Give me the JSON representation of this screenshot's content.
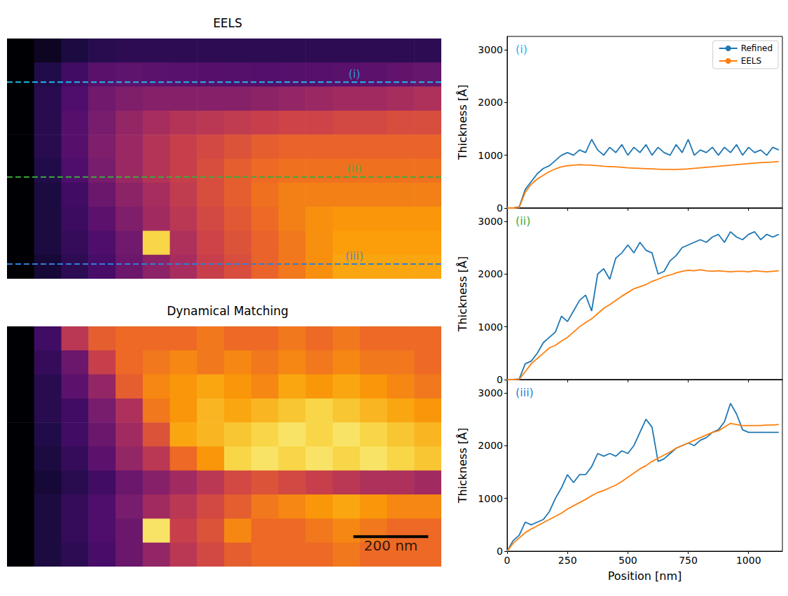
{
  "chart_data": [
    {
      "type": "heatmap",
      "title": "EELS",
      "tick_labels": false,
      "xlim": [
        0,
        1160
      ],
      "ylim": [
        0,
        640
      ],
      "color_range": [
        0,
        3000
      ],
      "x": [
        36.25,
        108.75,
        181.25,
        253.75,
        326.25,
        398.75,
        471.25,
        543.75,
        616.25,
        688.75,
        761.25,
        833.75,
        906.25,
        978.75,
        1051.25,
        1123.75
      ],
      "y": [
        32,
        96,
        160,
        224,
        288,
        352,
        416,
        480,
        544,
        608
      ],
      "values": [
        [
          0,
          150,
          300,
          400,
          450,
          450,
          450,
          450,
          450,
          450,
          450,
          450,
          450,
          450,
          450,
          450
        ],
        [
          0,
          350,
          600,
          780,
          810,
          790,
          770,
          750,
          740,
          730,
          740,
          760,
          780,
          800,
          840,
          870
        ],
        [
          0,
          400,
          700,
          950,
          1050,
          1100,
          1100,
          1100,
          1100,
          1150,
          1200,
          1250,
          1300,
          1300,
          1350,
          1400
        ],
        [
          0,
          400,
          750,
          1000,
          1200,
          1350,
          1450,
          1500,
          1550,
          1600,
          1650,
          1650,
          1700,
          1700,
          1750,
          1750
        ],
        [
          0,
          400,
          750,
          1050,
          1250,
          1450,
          1600,
          1700,
          1800,
          1900,
          1950,
          1950,
          1950,
          1950,
          1950,
          1950
        ],
        [
          0,
          350,
          700,
          1000,
          1250,
          1450,
          1600,
          1750,
          1900,
          2000,
          2050,
          2050,
          2050,
          2050,
          2050,
          2050
        ],
        [
          0,
          300,
          600,
          900,
          1150,
          1350,
          1550,
          1750,
          1900,
          2050,
          2150,
          2150,
          2150,
          2150,
          2150,
          2150
        ],
        [
          0,
          300,
          550,
          800,
          1050,
          1300,
          1500,
          1700,
          1850,
          2000,
          2150,
          2250,
          2300,
          2300,
          2300,
          2300
        ],
        [
          0,
          300,
          500,
          700,
          950,
          2700,
          1400,
          1650,
          1800,
          1950,
          2100,
          2250,
          2350,
          2350,
          2350,
          2350
        ],
        [
          0,
          250,
          450,
          650,
          900,
          1150,
          1350,
          1600,
          1750,
          1950,
          2100,
          2250,
          2400,
          2400,
          2400,
          2400
        ]
      ],
      "lines": [
        {
          "label": "(i)",
          "y": 116,
          "color": "#22b8ea",
          "line_style": "dashed"
        },
        {
          "label": "(ii)",
          "y": 369,
          "color": "#3bab3b",
          "line_style": "dashed"
        },
        {
          "label": "(iii)",
          "y": 601,
          "color": "#2f7fd8",
          "line_style": "dashed"
        }
      ]
    },
    {
      "type": "heatmap",
      "title": "Dynamical Matching",
      "tick_labels": false,
      "xlim": [
        0,
        1160
      ],
      "ylim": [
        0,
        640
      ],
      "color_range": [
        0,
        3000
      ],
      "x": [
        36.25,
        108.75,
        181.25,
        253.75,
        326.25,
        398.75,
        471.25,
        543.75,
        616.25,
        688.75,
        761.25,
        833.75,
        906.25,
        978.75,
        1051.25,
        1123.75
      ],
      "y": [
        32,
        96,
        160,
        224,
        288,
        352,
        416,
        480,
        544,
        608
      ],
      "values": [
        [
          0,
          600,
          1500,
          1900,
          2000,
          2000,
          2000,
          2100,
          2000,
          2000,
          2100,
          2000,
          2100,
          2000,
          2000,
          2000
        ],
        [
          0,
          500,
          900,
          1600,
          2000,
          2100,
          2200,
          2100,
          2200,
          2100,
          2200,
          2100,
          2200,
          2100,
          2100,
          2000
        ],
        [
          0,
          400,
          800,
          1200,
          1900,
          2200,
          2300,
          2400,
          2300,
          2200,
          2400,
          2300,
          2400,
          2300,
          2200,
          2100
        ],
        [
          0,
          400,
          600,
          1000,
          1400,
          2100,
          2300,
          2500,
          2400,
          2500,
          2600,
          2700,
          2600,
          2500,
          2400,
          2300
        ],
        [
          0,
          350,
          600,
          900,
          1300,
          1800,
          2400,
          2500,
          2600,
          2700,
          2800,
          2700,
          2800,
          2700,
          2600,
          2500
        ],
        [
          0,
          300,
          500,
          800,
          1200,
          1500,
          2000,
          2300,
          2700,
          2800,
          2700,
          2800,
          2700,
          2800,
          2700,
          2600
        ],
        [
          0,
          250,
          400,
          600,
          900,
          1100,
          1300,
          1500,
          1700,
          1800,
          1700,
          1600,
          1500,
          1400,
          1400,
          1300
        ],
        [
          0,
          300,
          500,
          700,
          1000,
          1300,
          1500,
          1700,
          1900,
          2100,
          2200,
          2300,
          2400,
          2300,
          2200,
          2200
        ],
        [
          0,
          300,
          500,
          700,
          900,
          2800,
          1600,
          1800,
          2200,
          2000,
          2000,
          2100,
          2200,
          2100,
          2000,
          2000
        ],
        [
          0,
          300,
          450,
          650,
          900,
          1200,
          1500,
          1700,
          1900,
          2000,
          2000,
          2000,
          2100,
          2000,
          2000,
          2000
        ]
      ],
      "scale_bar": {
        "label": "200 nm",
        "length": 200
      }
    },
    {
      "type": "line",
      "title": "(i)",
      "tick_labels": "y",
      "legend": "upper right",
      "xlim": [
        0,
        1140
      ],
      "xticks": [
        0,
        250,
        500,
        750,
        1000
      ],
      "ylim": [
        0,
        3250
      ],
      "yticks": [
        0,
        1000,
        2000,
        3000
      ],
      "y_label": "Thickness [Å]",
      "x": [
        0,
        25,
        50,
        75,
        100,
        125,
        150,
        175,
        200,
        225,
        250,
        275,
        300,
        325,
        350,
        375,
        400,
        425,
        450,
        475,
        500,
        525,
        550,
        575,
        600,
        625,
        650,
        675,
        700,
        725,
        750,
        775,
        800,
        825,
        850,
        875,
        900,
        925,
        950,
        975,
        1000,
        1025,
        1050,
        1075,
        1100,
        1125
      ],
      "series": [
        {
          "name": "Refined",
          "color": "#1f77b4",
          "values": [
            0,
            0,
            20,
            350,
            500,
            650,
            750,
            800,
            900,
            1000,
            1050,
            1000,
            1100,
            1050,
            1300,
            1100,
            1000,
            1150,
            1050,
            1200,
            1000,
            1150,
            1050,
            1200,
            1000,
            1150,
            1050,
            1000,
            1200,
            1050,
            1300,
            1000,
            1100,
            1050,
            1150,
            1000,
            1150,
            1050,
            1200,
            1000,
            1150,
            1050,
            1100,
            1000,
            1150,
            1100
          ]
        },
        {
          "name": "EELS",
          "color": "#ff7f0e",
          "values": [
            0,
            0,
            10,
            300,
            450,
            550,
            620,
            690,
            740,
            780,
            800,
            810,
            820,
            815,
            810,
            800,
            790,
            785,
            780,
            770,
            760,
            755,
            750,
            745,
            740,
            735,
            730,
            730,
            730,
            735,
            740,
            750,
            760,
            770,
            780,
            790,
            800,
            810,
            820,
            830,
            840,
            850,
            860,
            865,
            870,
            880
          ]
        }
      ]
    },
    {
      "type": "line",
      "title": "(ii)",
      "tick_labels": "y",
      "xlim": [
        0,
        1140
      ],
      "xticks": [
        0,
        250,
        500,
        750,
        1000
      ],
      "ylim": [
        0,
        3250
      ],
      "yticks": [
        0,
        1000,
        2000,
        3000
      ],
      "y_label": "Thickness [Å]",
      "x": [
        0,
        25,
        50,
        75,
        100,
        125,
        150,
        175,
        200,
        225,
        250,
        275,
        300,
        325,
        350,
        375,
        400,
        425,
        450,
        475,
        500,
        525,
        550,
        575,
        600,
        625,
        650,
        675,
        700,
        725,
        750,
        775,
        800,
        825,
        850,
        875,
        900,
        925,
        950,
        975,
        1000,
        1025,
        1050,
        1075,
        1100,
        1125
      ],
      "series": [
        {
          "name": "Refined",
          "color": "#1f77b4",
          "values": [
            0,
            0,
            10,
            300,
            350,
            500,
            700,
            800,
            900,
            1200,
            1100,
            1300,
            1500,
            1600,
            1300,
            2000,
            2100,
            1900,
            2300,
            2400,
            2550,
            2400,
            2600,
            2450,
            2400,
            2000,
            2050,
            2250,
            2350,
            2500,
            2550,
            2600,
            2650,
            2600,
            2700,
            2750,
            2600,
            2800,
            2700,
            2650,
            2750,
            2800,
            2650,
            2750,
            2700,
            2750
          ]
        },
        {
          "name": "EELS",
          "color": "#ff7f0e",
          "values": [
            0,
            0,
            5,
            150,
            300,
            400,
            500,
            600,
            650,
            730,
            800,
            900,
            1000,
            1080,
            1150,
            1250,
            1350,
            1420,
            1500,
            1580,
            1650,
            1720,
            1760,
            1800,
            1860,
            1900,
            1950,
            1980,
            2020,
            2050,
            2070,
            2060,
            2080,
            2060,
            2050,
            2060,
            2050,
            2040,
            2050,
            2050,
            2040,
            2060,
            2050,
            2040,
            2050,
            2060
          ]
        }
      ]
    },
    {
      "type": "line",
      "title": "(iii)",
      "xlim": [
        0,
        1140
      ],
      "xticks": [
        0,
        250,
        500,
        750,
        1000
      ],
      "ylim": [
        0,
        3250
      ],
      "yticks": [
        0,
        1000,
        2000,
        3000
      ],
      "x_label": "Position [nm]",
      "y_label": "Thickness [Å]",
      "x": [
        0,
        25,
        50,
        75,
        100,
        125,
        150,
        175,
        200,
        225,
        250,
        275,
        300,
        325,
        350,
        375,
        400,
        425,
        450,
        475,
        500,
        525,
        550,
        575,
        600,
        625,
        650,
        675,
        700,
        725,
        750,
        775,
        800,
        825,
        850,
        875,
        900,
        925,
        950,
        975,
        1000,
        1025,
        1050,
        1075,
        1100,
        1125
      ],
      "series": [
        {
          "name": "Refined",
          "color": "#1f77b4",
          "values": [
            0,
            200,
            300,
            550,
            500,
            550,
            600,
            750,
            1000,
            1200,
            1450,
            1300,
            1450,
            1450,
            1600,
            1850,
            1800,
            1850,
            1800,
            1900,
            1850,
            2000,
            2250,
            2500,
            2350,
            1700,
            1750,
            1850,
            1950,
            2000,
            2050,
            2000,
            2100,
            2150,
            2250,
            2300,
            2450,
            2800,
            2600,
            2300,
            2250,
            2250,
            2250,
            2250,
            2250,
            2250
          ]
        },
        {
          "name": "EELS",
          "color": "#ff7f0e",
          "values": [
            0,
            150,
            250,
            350,
            420,
            480,
            540,
            600,
            660,
            720,
            800,
            860,
            920,
            980,
            1050,
            1110,
            1150,
            1200,
            1250,
            1320,
            1400,
            1480,
            1560,
            1620,
            1700,
            1760,
            1820,
            1880,
            1950,
            2000,
            2050,
            2100,
            2150,
            2200,
            2250,
            2280,
            2350,
            2420,
            2400,
            2380,
            2380,
            2380,
            2380,
            2390,
            2390,
            2400
          ]
        }
      ]
    }
  ]
}
